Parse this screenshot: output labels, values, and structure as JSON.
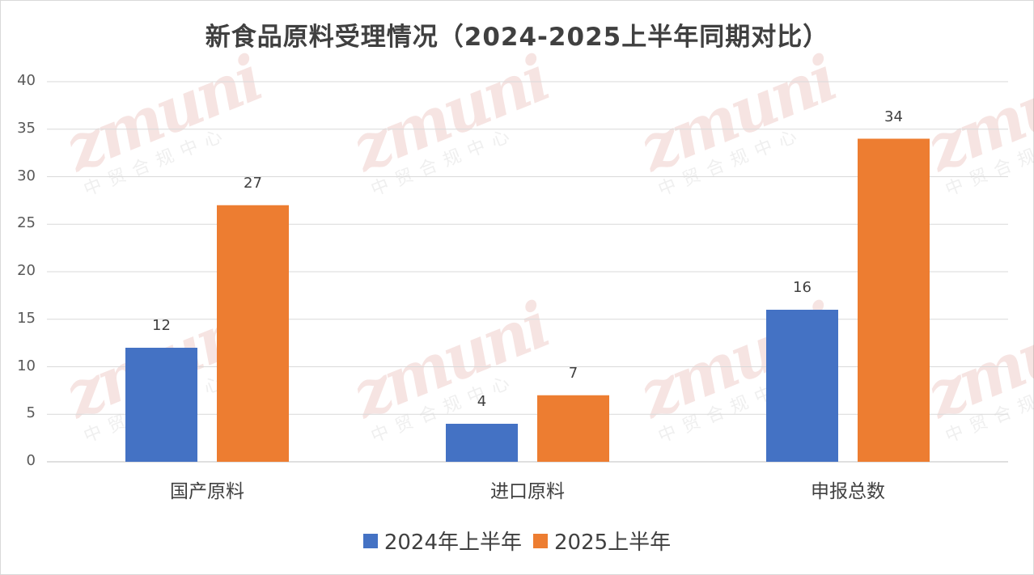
{
  "chart_data": {
    "type": "bar",
    "title": "新食品原料受理情况（2024-2025上半年同期对比）",
    "categories": [
      "国产原料",
      "进口原料",
      "申报总数"
    ],
    "series": [
      {
        "name": "2024年上半年",
        "values": [
          12,
          4,
          16
        ],
        "color": "#4472c4"
      },
      {
        "name": "2025上半年",
        "values": [
          27,
          7,
          34
        ],
        "color": "#ed7d31"
      }
    ],
    "ylim": [
      0,
      40
    ],
    "yticks": [
      0,
      5,
      10,
      15,
      20,
      25,
      30,
      35,
      40
    ],
    "grid": true,
    "legend_position": "bottom",
    "xlabel": "",
    "ylabel": ""
  },
  "watermark": {
    "logo": "zmuni",
    "text": "中贸合规中心"
  }
}
